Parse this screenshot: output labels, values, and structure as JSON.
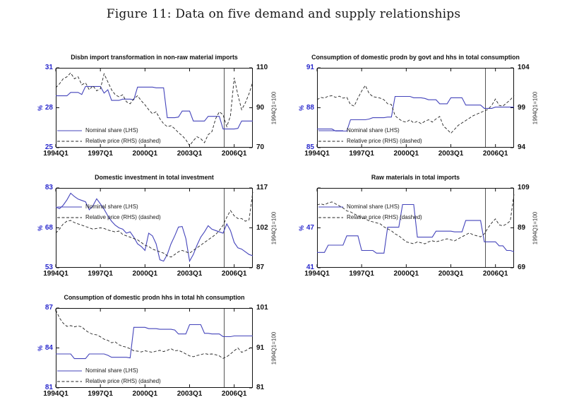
{
  "figure_title": "Figure 11: Data on five demand and supply relationships",
  "colors": {
    "nominal_share_line": "#4444bb",
    "relative_price_line": "#222222",
    "blue_tick_text": "#2929cc",
    "axis": "#111111",
    "vline": "#555555"
  },
  "chart_data": [
    {
      "type": "line",
      "title": "Disbn import transformation in non-raw material imports",
      "x_tick_labels": [
        "1994Q1",
        "1997Q1",
        "2000Q1",
        "2003Q1",
        "2006Q1"
      ],
      "x_tick_positions_quarters": [
        0,
        12,
        24,
        36,
        48
      ],
      "x_range": [
        "1994Q1",
        "2007Q2"
      ],
      "vline_at": "2005Q2",
      "left_axis": {
        "label": "%",
        "min": 25,
        "max": 31,
        "ticks": [
          25,
          28,
          31
        ],
        "tick_marks": [
          25,
          28,
          31
        ]
      },
      "right_axis": {
        "label": "1994Q1=100",
        "min": 70,
        "max": 110,
        "ticks": [
          70,
          90,
          110
        ],
        "tick_marks": [
          70,
          90,
          110
        ]
      },
      "legend_pos": "bottom-left",
      "legend": [
        {
          "name": "Nominal share (LHS)",
          "style": "solid",
          "color": "#4444bb"
        },
        {
          "name": "Relative price (RHS) (dashed)",
          "style": "dashed",
          "color": "#222222"
        }
      ],
      "series": [
        {
          "name": "Nominal share (LHS)",
          "axis": "left",
          "style": "solid",
          "color": "#4444bb",
          "values": [
            28.9,
            28.9,
            28.9,
            28.9,
            29.15,
            29.15,
            29.15,
            29.0,
            29.6,
            29.6,
            29.6,
            29.6,
            29.6,
            29.1,
            29.35,
            28.55,
            28.55,
            28.55,
            28.65,
            28.65,
            28.65,
            28.6,
            29.55,
            29.55,
            29.55,
            29.55,
            29.55,
            29.5,
            29.5,
            29.5,
            27.25,
            27.25,
            27.25,
            27.3,
            27.75,
            27.75,
            27.75,
            27.0,
            27.0,
            27.0,
            27.0,
            27.35,
            27.35,
            27.35,
            27.35,
            26.4,
            26.4,
            26.4,
            26.4,
            26.45,
            27.0,
            27.0,
            27.0,
            27.0
          ]
        },
        {
          "name": "Relative price (RHS) (dashed)",
          "axis": "right",
          "style": "dashed",
          "color": "#222222",
          "values": [
            100,
            102,
            104.5,
            105.5,
            107.5,
            104.5,
            105.5,
            101.5,
            102.5,
            99,
            101,
            98.5,
            99.5,
            107,
            103,
            99,
            96.5,
            95.5,
            96.5,
            93,
            92,
            94.5,
            96,
            93.5,
            91.5,
            89,
            87,
            88,
            84.5,
            82,
            80.5,
            81,
            79.5,
            77.5,
            76,
            74,
            71,
            73.5,
            75.5,
            74.5,
            72.5,
            76.5,
            78,
            84.5,
            88,
            86.5,
            80.5,
            86,
            105,
            96.5,
            89,
            92.5,
            97,
            103
          ]
        }
      ]
    },
    {
      "type": "line",
      "title": "Consumption of domestic prodn by govt and hhs in total consumption",
      "x_tick_labels": [
        "1994Q1",
        "1997Q1",
        "2000Q1",
        "2003Q1",
        "2006Q1"
      ],
      "x_tick_positions_quarters": [
        0,
        12,
        24,
        36,
        48
      ],
      "x_range": [
        "1994Q1",
        "2007Q2"
      ],
      "vline_at": "2005Q2",
      "left_axis": {
        "label": "%",
        "min": 85,
        "max": 91,
        "ticks": [
          85,
          88,
          91
        ],
        "tick_marks": [
          85,
          88,
          91
        ]
      },
      "right_axis": {
        "label": "1994Q1=100",
        "min": 94,
        "max": 104,
        "ticks": [
          94,
          99,
          104
        ],
        "tick_marks": [
          94,
          99,
          104
        ]
      },
      "legend_pos": "bottom-left",
      "legend": [
        {
          "name": "Nominal share (LHS)",
          "style": "solid",
          "color": "#4444bb"
        },
        {
          "name": "Relative price (RHS) (dashed)",
          "style": "dashed",
          "color": "#222222"
        }
      ],
      "series": [
        {
          "name": "Nominal share (LHS)",
          "axis": "left",
          "style": "solid",
          "color": "#4444bb",
          "values": [
            86.4,
            86.4,
            86.4,
            86.4,
            86.4,
            86.25,
            86.25,
            86.25,
            86.25,
            87.1,
            87.1,
            87.1,
            87.1,
            87.1,
            87.15,
            87.25,
            87.25,
            87.25,
            87.25,
            87.3,
            87.3,
            88.85,
            88.85,
            88.85,
            88.85,
            88.85,
            88.75,
            88.75,
            88.75,
            88.7,
            88.6,
            88.6,
            88.6,
            88.3,
            88.3,
            88.3,
            88.75,
            88.75,
            88.75,
            88.75,
            88.2,
            88.2,
            88.2,
            88.2,
            88.2,
            87.95,
            87.95,
            87.95,
            88.05,
            88.05,
            88.05,
            88.05,
            88.05,
            88.05
          ]
        },
        {
          "name": "Relative price (RHS) (dashed)",
          "axis": "right",
          "style": "dashed",
          "color": "#222222",
          "values": [
            100,
            100.3,
            100.2,
            100.45,
            100.5,
            100.3,
            100.45,
            100.2,
            100.3,
            99.4,
            99.2,
            100.2,
            101.1,
            101.8,
            100.8,
            100.4,
            100.3,
            100.2,
            100.0,
            99.5,
            99.4,
            98.0,
            97.6,
            97.3,
            97.2,
            97.5,
            97.1,
            97.3,
            97.0,
            97.3,
            97.5,
            97.2,
            97.6,
            97.9,
            96.7,
            96.3,
            95.8,
            96.3,
            96.8,
            97.1,
            97.4,
            97.7,
            98.0,
            98.2,
            98.4,
            98.6,
            98.8,
            99.3,
            100.1,
            99.3,
            99.2,
            99.6,
            100.0,
            100.5
          ]
        }
      ]
    },
    {
      "type": "line",
      "title": "Domestic investment in total investment",
      "x_tick_labels": [
        "1994Q1",
        "1997Q1",
        "2000Q1",
        "2003Q1",
        "2006Q1"
      ],
      "x_tick_positions_quarters": [
        0,
        12,
        24,
        36,
        48
      ],
      "x_range": [
        "1994Q1",
        "2007Q2"
      ],
      "vline_at": "2005Q2",
      "left_axis": {
        "label": "%",
        "min": 53,
        "max": 83,
        "ticks": [
          53,
          68,
          83
        ],
        "tick_marks": [
          53,
          68,
          83
        ]
      },
      "right_axis": {
        "label": "1994Q1=100",
        "min": 87,
        "max": 117,
        "ticks": [
          87,
          102,
          117
        ],
        "tick_marks": [
          87,
          102,
          117
        ]
      },
      "legend_pos": "top-left",
      "legend": [
        {
          "name": "Nominal share (LHS)",
          "style": "solid",
          "color": "#4444bb"
        },
        {
          "name": "Relative price (RHS) (dashed)",
          "style": "dashed",
          "color": "#222222"
        }
      ],
      "series": [
        {
          "name": "Nominal share (LHS)",
          "axis": "left",
          "style": "solid",
          "color": "#4444bb",
          "values": [
            75.8,
            75.2,
            76.5,
            78.5,
            81.0,
            79.8,
            78.8,
            78.3,
            77.8,
            74.8,
            76.3,
            78.9,
            77.0,
            75.0,
            72.5,
            70.5,
            69.0,
            68.0,
            67.5,
            66.0,
            66.5,
            64.5,
            62.0,
            61.0,
            59.5,
            66.0,
            65.0,
            62.0,
            56.0,
            55.5,
            58.0,
            62.0,
            65.0,
            68.3,
            68.5,
            64.0,
            55.5,
            58.0,
            61.5,
            64.5,
            66.5,
            68.8,
            67.5,
            67.0,
            66.5,
            66.0,
            69.5,
            67.0,
            62.5,
            60.5,
            60.0,
            59.0,
            58.0,
            57.5
          ]
        },
        {
          "name": "Relative price (RHS) (dashed)",
          "axis": "right",
          "style": "dashed",
          "color": "#222222",
          "values": [
            100,
            101.5,
            103.5,
            104.5,
            104.8,
            104.0,
            103.5,
            103.0,
            102.5,
            102.0,
            101.5,
            101.8,
            102.0,
            101.8,
            101.2,
            100.8,
            100.5,
            100.8,
            99.5,
            99.0,
            98.5,
            98.0,
            97.5,
            96.5,
            95.5,
            95.0,
            94.0,
            93.5,
            93.0,
            92.5,
            91.5,
            91.0,
            92.0,
            93.0,
            93.5,
            93.0,
            92.5,
            93.5,
            94.5,
            95.5,
            96.5,
            97.5,
            98.5,
            99.5,
            101.0,
            103.0,
            106.0,
            108.5,
            106.5,
            105.5,
            105.5,
            104.5,
            105.0,
            115.5
          ]
        }
      ]
    },
    {
      "type": "line",
      "title": "Raw materials in total imports",
      "x_tick_labels": [
        "1994Q1",
        "1997Q1",
        "2000Q1",
        "2003Q1",
        "2006Q1"
      ],
      "x_tick_positions_quarters": [
        0,
        12,
        24,
        36,
        48
      ],
      "x_range": [
        "1994Q1",
        "2007Q2"
      ],
      "vline_at": "2005Q2",
      "left_axis": {
        "label": "%",
        "min": 41,
        "max": 53,
        "ticks": [
          41,
          47
        ],
        "tick_marks": [
          41,
          47,
          53
        ]
      },
      "right_axis": {
        "label": "1994Q1=100",
        "min": 69,
        "max": 109,
        "ticks": [
          69,
          89,
          109
        ],
        "tick_marks": [
          69,
          89,
          109
        ]
      },
      "legend_pos": "top-left",
      "legend": [
        {
          "name": "Nominal share (LHS)",
          "style": "solid",
          "color": "#4444bb"
        },
        {
          "name": "Relative price (RHS) (dashed)",
          "style": "dashed",
          "color": "#222222"
        }
      ],
      "series": [
        {
          "name": "Nominal share (LHS)",
          "axis": "left",
          "style": "solid",
          "color": "#4444bb",
          "values": [
            43.3,
            43.3,
            43.3,
            44.4,
            44.4,
            44.4,
            44.4,
            44.4,
            45.8,
            45.8,
            45.8,
            45.8,
            43.6,
            43.6,
            43.6,
            43.6,
            43.2,
            43.2,
            43.2,
            47.1,
            47.1,
            47.1,
            47.1,
            50.5,
            50.5,
            50.5,
            50.5,
            45.6,
            45.6,
            45.6,
            45.6,
            45.6,
            46.5,
            46.5,
            46.5,
            46.5,
            46.5,
            46.4,
            46.4,
            46.4,
            48.1,
            48.1,
            48.1,
            48.1,
            48.1,
            44.9,
            44.9,
            44.9,
            44.9,
            44.3,
            44.3,
            43.6,
            43.6,
            43.4
          ]
        },
        {
          "name": "Relative price (RHS) (dashed)",
          "axis": "right",
          "style": "dashed",
          "color": "#222222",
          "values": [
            100.5,
            101,
            100.5,
            101.5,
            102,
            101,
            100,
            99,
            97.5,
            97,
            96,
            95,
            94,
            93.5,
            92.5,
            92,
            91.5,
            91,
            89.5,
            88.5,
            87.5,
            86,
            85,
            83.5,
            82,
            81.5,
            81,
            82,
            81.5,
            81,
            82,
            82.5,
            82,
            82.5,
            83,
            83.5,
            83,
            82.5,
            83.5,
            84.5,
            85.5,
            86.5,
            85.5,
            85,
            84.5,
            86,
            89,
            91.5,
            93.5,
            90.5,
            90,
            91,
            92.5,
            106
          ]
        }
      ]
    },
    {
      "type": "line",
      "title": "Consumption of domestic prodn hhs in total hh consumption",
      "x_tick_labels": [
        "1994Q1",
        "1997Q1",
        "2000Q1",
        "2003Q1",
        "2006Q1"
      ],
      "x_tick_positions_quarters": [
        0,
        12,
        24,
        36,
        48
      ],
      "x_range": [
        "1994Q1",
        "2007Q2"
      ],
      "vline_at": "2005Q2",
      "left_axis": {
        "label": "%",
        "min": 81,
        "max": 87,
        "ticks": [
          81,
          84,
          87
        ],
        "tick_marks": [
          81,
          84,
          87
        ]
      },
      "right_axis": {
        "label": "1994Q1=100",
        "min": 81,
        "max": 101,
        "ticks": [
          81,
          91,
          101
        ],
        "tick_marks": [
          81,
          91,
          101
        ]
      },
      "legend_pos": "bottom-left",
      "legend": [
        {
          "name": "Nominal share (LHS)",
          "style": "solid",
          "color": "#4444bb"
        },
        {
          "name": "Relative price (RHS) (dashed)",
          "style": "dashed",
          "color": "#222222"
        }
      ],
      "series": [
        {
          "name": "Nominal share (LHS)",
          "axis": "left",
          "style": "solid",
          "color": "#4444bb",
          "values": [
            83.55,
            83.55,
            83.55,
            83.55,
            83.55,
            83.2,
            83.2,
            83.2,
            83.2,
            83.55,
            83.55,
            83.55,
            83.55,
            83.55,
            83.45,
            83.3,
            83.3,
            83.3,
            83.3,
            83.3,
            83.25,
            85.55,
            85.55,
            85.55,
            85.55,
            85.45,
            85.45,
            85.45,
            85.4,
            85.4,
            85.4,
            85.4,
            85.35,
            85.05,
            85.05,
            85.05,
            85.75,
            85.75,
            85.75,
            85.75,
            85.1,
            85.1,
            85.05,
            85.05,
            85.05,
            84.85,
            84.85,
            84.85,
            84.9,
            84.9,
            84.9,
            84.9,
            84.9,
            84.9
          ]
        },
        {
          "name": "Relative price (RHS) (dashed)",
          "axis": "right",
          "style": "dashed",
          "color": "#222222",
          "values": [
            100.5,
            98.5,
            97.2,
            96.4,
            96.6,
            96.3,
            96.5,
            96.3,
            95.4,
            94.8,
            94.4,
            94.3,
            93.8,
            93.2,
            92.9,
            92.3,
            92.5,
            91.8,
            91.4,
            91.2,
            90.8,
            90.3,
            90.2,
            90.0,
            90.3,
            90.1,
            89.9,
            90.2,
            90.4,
            90.1,
            90.4,
            90.8,
            90.3,
            90.4,
            90.0,
            89.5,
            89.0,
            88.8,
            89.1,
            89.3,
            89.6,
            89.4,
            89.5,
            89.3,
            89.0,
            88.4,
            88.8,
            89.5,
            90.3,
            91.0,
            89.9,
            90.3,
            90.8,
            91.4
          ]
        }
      ]
    }
  ]
}
